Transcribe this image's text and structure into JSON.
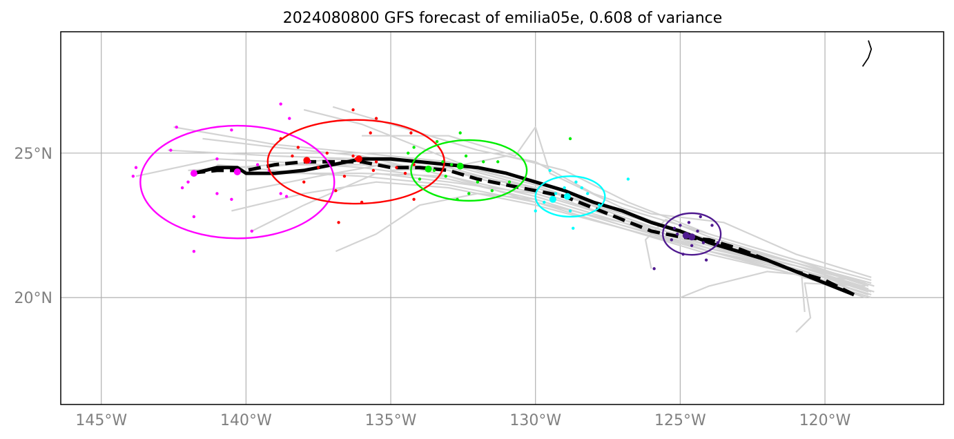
{
  "chart_data": {
    "type": "scatter",
    "title": "2024080800 GFS forecast of emilia05e, 0.608 of variance",
    "xlabel": "",
    "ylabel": "",
    "xlim": [
      -146.4,
      -115.9
    ],
    "ylim": [
      16.3,
      29.2
    ],
    "grid": true,
    "x_ticks": [
      {
        "value": -145,
        "label": "145°W"
      },
      {
        "value": -140,
        "label": "140°W"
      },
      {
        "value": -135,
        "label": "135°W"
      },
      {
        "value": -130,
        "label": "130°W"
      },
      {
        "value": -125,
        "label": "125°W"
      },
      {
        "value": -120,
        "label": "120°W"
      }
    ],
    "y_ticks": [
      {
        "value": 25,
        "label": "25°N"
      },
      {
        "value": 20,
        "label": "20°N"
      }
    ],
    "coastline": [
      [
        -118.7,
        28.0
      ],
      [
        -118.5,
        28.3
      ],
      [
        -118.4,
        28.6
      ],
      [
        -118.5,
        28.9
      ]
    ],
    "mean_track_solid": [
      [
        -119.0,
        20.1
      ],
      [
        -120.0,
        20.5
      ],
      [
        -121.0,
        20.9
      ],
      [
        -122.0,
        21.3
      ],
      [
        -123.0,
        21.6
      ],
      [
        -124.0,
        21.9
      ],
      [
        -125.0,
        22.3
      ],
      [
        -126.0,
        22.6
      ],
      [
        -127.0,
        23.0
      ],
      [
        -128.0,
        23.3
      ],
      [
        -129.0,
        23.7
      ],
      [
        -130.0,
        24.0
      ],
      [
        -131.0,
        24.3
      ],
      [
        -132.0,
        24.5
      ],
      [
        -133.0,
        24.6
      ],
      [
        -134.0,
        24.7
      ],
      [
        -135.0,
        24.8
      ],
      [
        -136.0,
        24.8
      ],
      [
        -137.0,
        24.6
      ],
      [
        -138.0,
        24.4
      ],
      [
        -139.0,
        24.3
      ],
      [
        -140.0,
        24.3
      ],
      [
        -140.3,
        24.5
      ],
      [
        -141.0,
        24.5
      ],
      [
        -141.8,
        24.3
      ]
    ],
    "mean_track_dashed": [
      [
        -119.0,
        20.1
      ],
      [
        -120.0,
        20.6
      ],
      [
        -121.0,
        20.9
      ],
      [
        -122.0,
        21.3
      ],
      [
        -123.0,
        21.7
      ],
      [
        -124.0,
        22.0
      ],
      [
        -125.0,
        22.1
      ],
      [
        -126.0,
        22.3
      ],
      [
        -127.0,
        22.7
      ],
      [
        -128.0,
        23.1
      ],
      [
        -129.0,
        23.5
      ],
      [
        -130.0,
        23.7
      ],
      [
        -131.0,
        23.9
      ],
      [
        -132.0,
        24.1
      ],
      [
        -133.0,
        24.4
      ],
      [
        -134.0,
        24.5
      ],
      [
        -135.0,
        24.5
      ],
      [
        -136.0,
        24.7
      ],
      [
        -137.0,
        24.7
      ],
      [
        -138.0,
        24.7
      ],
      [
        -139.0,
        24.6
      ],
      [
        -140.0,
        24.4
      ],
      [
        -141.0,
        24.4
      ],
      [
        -142.0,
        24.3
      ]
    ],
    "ensemble_tracks": [
      [
        [
          -118.4,
          20.5
        ],
        [
          -121,
          21.2
        ],
        [
          -124,
          21.9
        ],
        [
          -127,
          22.9
        ],
        [
          -130,
          23.8
        ],
        [
          -133,
          24.4
        ],
        [
          -136,
          24.6
        ],
        [
          -139,
          24.6
        ],
        [
          -142,
          24.4
        ]
      ],
      [
        [
          -118.5,
          20.3
        ],
        [
          -121,
          21.0
        ],
        [
          -124,
          21.6
        ],
        [
          -127,
          22.6
        ],
        [
          -130,
          23.5
        ],
        [
          -133,
          24.2
        ],
        [
          -136,
          24.9
        ],
        [
          -139,
          25.2
        ],
        [
          -141.5,
          25.5
        ]
      ],
      [
        [
          -118.3,
          20.2
        ],
        [
          -121,
          21.0
        ],
        [
          -124,
          21.8
        ],
        [
          -127,
          22.8
        ],
        [
          -130,
          23.9
        ],
        [
          -132,
          24.4
        ],
        [
          -134,
          25.2
        ],
        [
          -136,
          26.0
        ],
        [
          -138,
          26.5
        ]
      ],
      [
        [
          -118.6,
          20.0
        ],
        [
          -121,
          20.8
        ],
        [
          -124,
          21.5
        ],
        [
          -127,
          22.4
        ],
        [
          -130,
          23.2
        ],
        [
          -133,
          23.8
        ],
        [
          -135.5,
          24.0
        ],
        [
          -138,
          23.6
        ],
        [
          -140.5,
          23.0
        ]
      ],
      [
        [
          -118.4,
          20.6
        ],
        [
          -121,
          21.3
        ],
        [
          -124,
          22.2
        ],
        [
          -127,
          23.1
        ],
        [
          -129.5,
          24.3
        ],
        [
          -130,
          25.9
        ],
        [
          -130.7,
          24.9
        ],
        [
          -133,
          25.6
        ],
        [
          -136,
          25.6
        ]
      ],
      [
        [
          -118.5,
          20.2
        ],
        [
          -121,
          21.0
        ],
        [
          -124,
          21.7
        ],
        [
          -127,
          22.5
        ],
        [
          -130,
          23.4
        ],
        [
          -132,
          23.6
        ],
        [
          -134,
          23.2
        ],
        [
          -135.5,
          22.2
        ],
        [
          -136.9,
          21.6
        ]
      ],
      [
        [
          -118.7,
          20.4
        ],
        [
          -121,
          21.1
        ],
        [
          -124,
          21.9
        ],
        [
          -127,
          22.7
        ],
        [
          -130,
          23.6
        ],
        [
          -133,
          24.0
        ],
        [
          -135.5,
          24.3
        ],
        [
          -138,
          23.2
        ],
        [
          -139.8,
          22.3
        ]
      ],
      [
        [
          -118.4,
          20.1
        ],
        [
          -121,
          20.9
        ],
        [
          -124,
          21.6
        ],
        [
          -127,
          22.5
        ],
        [
          -130,
          23.4
        ],
        [
          -133,
          24.1
        ],
        [
          -136,
          24.5
        ],
        [
          -139,
          24.7
        ],
        [
          -141,
          24.8
        ],
        [
          -143.8,
          24.2
        ]
      ],
      [
        [
          -118.6,
          20.4
        ],
        [
          -120.7,
          20.5
        ],
        [
          -120.5,
          19.3
        ],
        [
          -121.0,
          18.8
        ]
      ],
      [
        [
          -118.5,
          20.3
        ],
        [
          -120.8,
          20.7
        ],
        [
          -120.7,
          19.5
        ]
      ],
      [
        [
          -118.8,
          20.6
        ],
        [
          -122,
          20.9
        ],
        [
          -124,
          20.4
        ],
        [
          -125,
          20.0
        ]
      ],
      [
        [
          -118.5,
          20.4
        ],
        [
          -121,
          21.2
        ],
        [
          -124,
          22.1
        ],
        [
          -125.5,
          22.7
        ],
        [
          -126.2,
          22.0
        ],
        [
          -126,
          21.0
        ]
      ],
      [
        [
          -118.4,
          20.7
        ],
        [
          -121,
          21.5
        ],
        [
          -123.5,
          22.6
        ],
        [
          -126,
          22.9
        ],
        [
          -128,
          23.6
        ],
        [
          -130,
          24.7
        ],
        [
          -132,
          25.1
        ],
        [
          -134,
          25.7
        ],
        [
          -137,
          26.6
        ]
      ],
      [
        [
          -118.5,
          20.1
        ],
        [
          -121,
          20.9
        ],
        [
          -124,
          21.8
        ],
        [
          -127,
          22.8
        ],
        [
          -130,
          23.9
        ],
        [
          -133,
          24.7
        ],
        [
          -136,
          25.0
        ],
        [
          -139,
          25.3
        ],
        [
          -142.5,
          25.9
        ]
      ],
      [
        [
          -118.4,
          20.2
        ],
        [
          -121,
          21.0
        ],
        [
          -124,
          21.8
        ],
        [
          -127,
          22.6
        ],
        [
          -130,
          23.3
        ],
        [
          -133,
          23.9
        ],
        [
          -136,
          24.2
        ],
        [
          -138,
          24.3
        ],
        [
          -141,
          24.6
        ]
      ],
      [
        [
          -118.6,
          20.5
        ],
        [
          -121,
          21.1
        ],
        [
          -124,
          21.9
        ],
        [
          -127,
          22.7
        ],
        [
          -130,
          23.7
        ],
        [
          -133,
          24.5
        ],
        [
          -135.3,
          24.6
        ],
        [
          -137.5,
          24.2
        ],
        [
          -140,
          23.7
        ]
      ],
      [
        [
          -118.3,
          20.4
        ],
        [
          -121,
          21.2
        ],
        [
          -124,
          22.0
        ],
        [
          -127,
          23.0
        ],
        [
          -130,
          23.8
        ],
        [
          -133,
          24.6
        ],
        [
          -136,
          24.8
        ],
        [
          -139,
          24.9
        ],
        [
          -142.7,
          25.1
        ]
      ],
      [
        [
          -118.5,
          20.3
        ],
        [
          -121,
          21.1
        ],
        [
          -124,
          21.7
        ],
        [
          -127,
          22.7
        ],
        [
          -130,
          23.6
        ],
        [
          -133,
          24.4
        ],
        [
          -135,
          24.6
        ],
        [
          -137,
          24.8
        ],
        [
          -139.3,
          24.5
        ]
      ],
      [
        [
          -118.4,
          20.0
        ],
        [
          -121,
          20.8
        ],
        [
          -124,
          21.6
        ],
        [
          -127,
          22.4
        ],
        [
          -130,
          23.3
        ],
        [
          -133,
          24.2
        ],
        [
          -136,
          24.3
        ],
        [
          -139,
          24.3
        ]
      ],
      [
        [
          -118.7,
          20.5
        ],
        [
          -121,
          21.3
        ],
        [
          -124,
          22.2
        ],
        [
          -126.8,
          23.3
        ],
        [
          -129,
          24.4
        ],
        [
          -131,
          24.9
        ],
        [
          -133,
          24.5
        ],
        [
          -135,
          24.4
        ]
      ]
    ],
    "groups": [
      {
        "color": "#ff00ff",
        "ellipse": {
          "cx": -140.3,
          "cy": 24.0,
          "rx": 3.35,
          "ry": 1.95
        },
        "mean_points": [
          [
            -141.8,
            24.3
          ],
          [
            -140.3,
            24.35
          ]
        ],
        "points": [
          [
            -138.8,
            26.7
          ],
          [
            -138.5,
            26.2
          ],
          [
            -142.4,
            25.9
          ],
          [
            -140.5,
            25.8
          ],
          [
            -142.6,
            25.1
          ],
          [
            -139.6,
            24.6
          ],
          [
            -141.0,
            24.8
          ],
          [
            -143.8,
            24.5
          ],
          [
            -143.9,
            24.2
          ],
          [
            -139.2,
            24.4
          ],
          [
            -142.2,
            23.8
          ],
          [
            -141.0,
            23.6
          ],
          [
            -140.5,
            23.4
          ],
          [
            -141.8,
            22.8
          ],
          [
            -139.8,
            22.3
          ],
          [
            -141.8,
            21.6
          ],
          [
            -142.0,
            24.0
          ],
          [
            -138.8,
            23.6
          ],
          [
            -138.6,
            23.5
          ],
          [
            -137.8,
            24.7
          ]
        ]
      },
      {
        "color": "#ff0000",
        "ellipse": {
          "cx": -136.2,
          "cy": 24.7,
          "rx": 3.05,
          "ry": 1.45
        },
        "mean_points": [
          [
            -137.9,
            24.75
          ],
          [
            -136.1,
            24.8
          ]
        ],
        "points": [
          [
            -136.3,
            26.5
          ],
          [
            -135.5,
            26.2
          ],
          [
            -138.8,
            25.5
          ],
          [
            -138.2,
            25.2
          ],
          [
            -137.2,
            25.0
          ],
          [
            -136.3,
            24.9
          ],
          [
            -135.5,
            24.7
          ],
          [
            -134.8,
            24.5
          ],
          [
            -134.2,
            24.6
          ],
          [
            -137.5,
            24.5
          ],
          [
            -138.0,
            24.0
          ],
          [
            -136.6,
            24.2
          ],
          [
            -135.6,
            24.4
          ],
          [
            -134.5,
            24.3
          ],
          [
            -136.9,
            23.7
          ],
          [
            -136.0,
            23.3
          ],
          [
            -134.2,
            23.4
          ],
          [
            -136.8,
            22.6
          ],
          [
            -134.3,
            25.7
          ],
          [
            -135.7,
            25.7
          ],
          [
            -136.2,
            24.8
          ],
          [
            -138.4,
            24.9
          ]
        ]
      },
      {
        "color": "#00ee00",
        "ellipse": {
          "cx": -132.3,
          "cy": 24.4,
          "rx": 2.0,
          "ry": 1.05
        },
        "mean_points": [
          [
            -133.7,
            24.45
          ],
          [
            -132.6,
            24.55
          ]
        ],
        "points": [
          [
            -132.6,
            25.7
          ],
          [
            -134.2,
            25.2
          ],
          [
            -133.4,
            25.4
          ],
          [
            -131.8,
            24.7
          ],
          [
            -132.4,
            24.9
          ],
          [
            -131.3,
            24.7
          ],
          [
            -133.1,
            24.2
          ],
          [
            -133.5,
            24.4
          ],
          [
            -132.0,
            24.0
          ],
          [
            -131.5,
            23.7
          ],
          [
            -130.9,
            24.0
          ],
          [
            -132.7,
            23.4
          ],
          [
            -132.3,
            23.6
          ],
          [
            -133.2,
            24.7
          ],
          [
            -134.0,
            24.1
          ],
          [
            -128.8,
            25.5
          ],
          [
            -132.9,
            24.6
          ],
          [
            -134.4,
            25.0
          ]
        ]
      },
      {
        "color": "#00ffff",
        "ellipse": {
          "cx": -128.8,
          "cy": 23.5,
          "rx": 1.2,
          "ry": 0.7
        },
        "mean_points": [
          [
            -129.4,
            23.4
          ],
          [
            -128.9,
            23.5
          ]
        ],
        "points": [
          [
            -129.5,
            24.4
          ],
          [
            -128.6,
            24.0
          ],
          [
            -128.4,
            23.8
          ],
          [
            -129.0,
            23.8
          ],
          [
            -128.2,
            23.6
          ],
          [
            -127.8,
            23.2
          ],
          [
            -130.0,
            23.0
          ],
          [
            -128.8,
            23.0
          ],
          [
            -128.7,
            22.4
          ],
          [
            -126.8,
            24.1
          ],
          [
            -129.3,
            23.6
          ],
          [
            -129.7,
            23.3
          ]
        ]
      },
      {
        "color": "#4f1a8f",
        "ellipse": {
          "cx": -124.6,
          "cy": 22.2,
          "rx": 1.0,
          "ry": 0.72
        },
        "mean_points": [
          [
            -124.8,
            22.15
          ],
          [
            -124.6,
            22.1
          ]
        ],
        "points": [
          [
            -124.3,
            22.8
          ],
          [
            -123.9,
            22.5
          ],
          [
            -124.7,
            22.6
          ],
          [
            -125.2,
            22.4
          ],
          [
            -125.3,
            22.0
          ],
          [
            -124.2,
            21.9
          ],
          [
            -124.9,
            21.5
          ],
          [
            -124.1,
            21.3
          ],
          [
            -123.7,
            21.9
          ],
          [
            -125.0,
            22.5
          ],
          [
            -125.9,
            21.0
          ],
          [
            -124.4,
            22.3
          ],
          [
            -124.6,
            21.8
          ],
          [
            -125.1,
            22.2
          ]
        ]
      }
    ]
  }
}
